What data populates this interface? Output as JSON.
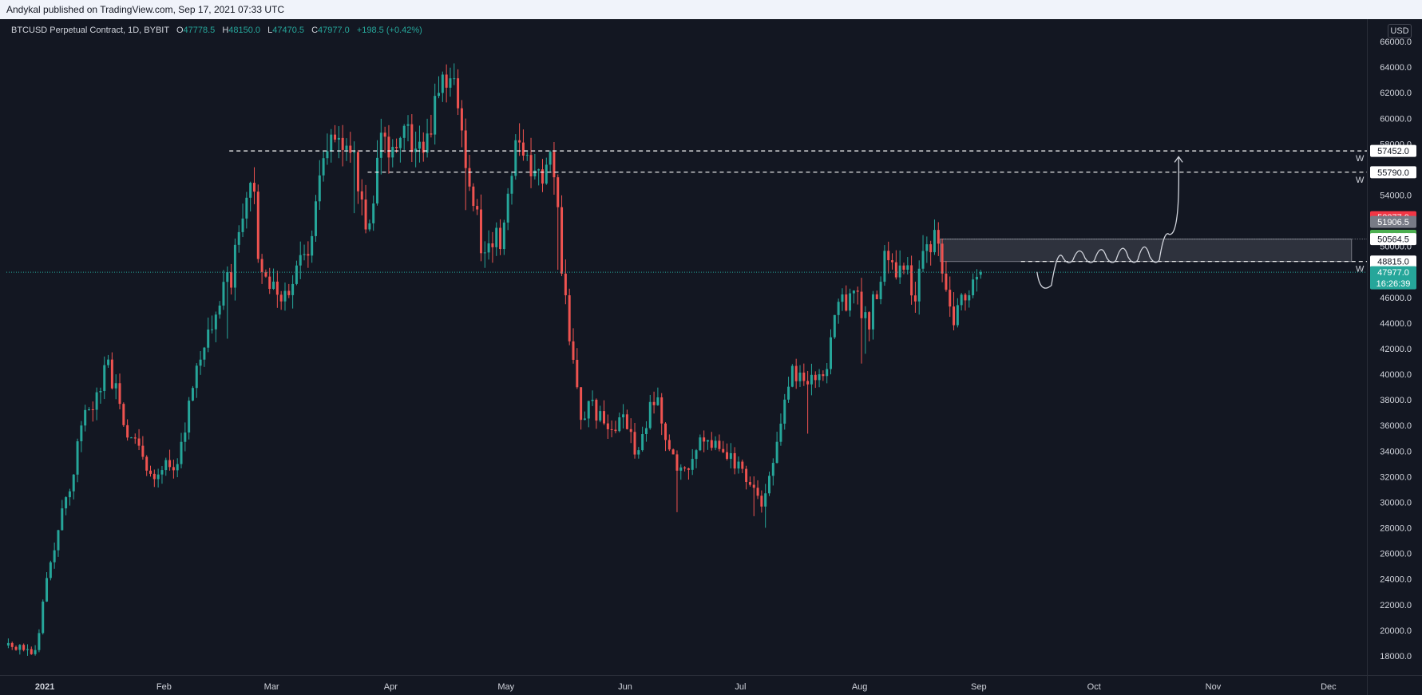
{
  "header": {
    "published_text": "Andykal published on TradingView.com, Sep 17, 2021 07:33 UTC"
  },
  "legend": {
    "symbol": "BTCUSD Perpetual Contract, 1D, BYBIT",
    "open_key": "O",
    "open": "47778.5",
    "high_key": "H",
    "high": "48150.0",
    "low_key": "L",
    "low": "47470.5",
    "close_key": "C",
    "close": "47977.0",
    "change": "+198.5 (+0.42%)"
  },
  "currency_button": "USD",
  "colors": {
    "background": "#131722",
    "up": "#26a69a",
    "down": "#ef5350",
    "text": "#d1d4dc",
    "axis_border": "#2a2e39"
  },
  "chart_data": {
    "type": "candlestick",
    "title": "BTCUSD Perpetual Contract, 1D, BYBIT",
    "ylim": [
      16500,
      67500
    ],
    "y_ticks": [
      18000,
      20000,
      22000,
      24000,
      26000,
      28000,
      30000,
      32000,
      34000,
      36000,
      38000,
      40000,
      42000,
      44000,
      46000,
      48000,
      50000,
      52000,
      54000,
      56000,
      58000,
      60000,
      62000,
      64000,
      66000
    ],
    "x_ticks": [
      {
        "label": "2021",
        "date": "2021-01-01"
      },
      {
        "label": "Feb",
        "date": "2021-02-01"
      },
      {
        "label": "Mar",
        "date": "2021-03-01"
      },
      {
        "label": "Apr",
        "date": "2021-04-01"
      },
      {
        "label": "May",
        "date": "2021-05-01"
      },
      {
        "label": "Jun",
        "date": "2021-06-01"
      },
      {
        "label": "Jul",
        "date": "2021-07-01"
      },
      {
        "label": "Aug",
        "date": "2021-08-01"
      },
      {
        "label": "Sep",
        "date": "2021-09-01"
      },
      {
        "label": "Oct",
        "date": "2021-10-01"
      },
      {
        "label": "Nov",
        "date": "2021-11-01"
      },
      {
        "label": "Dec",
        "date": "2021-12-01"
      }
    ],
    "x_range": [
      "2020-12-22",
      "2021-12-11"
    ],
    "grid": false,
    "candles": {
      "start_date": "2020-12-22",
      "interval": "1D",
      "approx_daily_closes": [
        [
          0,
          19000
        ],
        [
          7,
          18500
        ],
        [
          10,
          23500
        ],
        [
          14,
          29000
        ],
        [
          20,
          36500
        ],
        [
          26,
          40500
        ],
        [
          32,
          35000
        ],
        [
          38,
          31500
        ],
        [
          44,
          33500
        ],
        [
          52,
          44000
        ],
        [
          58,
          47500
        ],
        [
          63,
          56000
        ],
        [
          66,
          47000
        ],
        [
          72,
          46500
        ],
        [
          78,
          50000
        ],
        [
          82,
          56000
        ],
        [
          86,
          59500
        ],
        [
          90,
          56000
        ],
        [
          93,
          51500
        ],
        [
          97,
          57500
        ],
        [
          102,
          58500
        ],
        [
          108,
          58000
        ],
        [
          113,
          63500
        ],
        [
          116,
          62500
        ],
        [
          120,
          55000
        ],
        [
          124,
          48500
        ],
        [
          128,
          51000
        ],
        [
          132,
          57000
        ],
        [
          138,
          55500
        ],
        [
          141,
          57500
        ],
        [
          144,
          49000
        ],
        [
          146,
          43000
        ],
        [
          149,
          36500
        ],
        [
          152,
          38000
        ],
        [
          156,
          35000
        ],
        [
          160,
          36000
        ],
        [
          164,
          34000
        ],
        [
          168,
          38500
        ],
        [
          172,
          34000
        ],
        [
          176,
          32500
        ],
        [
          180,
          35500
        ],
        [
          184,
          34000
        ],
        [
          188,
          33500
        ],
        [
          192,
          31500
        ],
        [
          196,
          30000
        ],
        [
          200,
          35000
        ],
        [
          204,
          40000
        ],
        [
          208,
          39500
        ],
        [
          212,
          39500
        ],
        [
          216,
          45000
        ],
        [
          220,
          46500
        ],
        [
          224,
          44500
        ],
        [
          228,
          48500
        ],
        [
          232,
          48500
        ],
        [
          236,
          46500
        ],
        [
          240,
          50500
        ],
        [
          241,
          52000
        ],
        [
          243,
          47000
        ],
        [
          245,
          44500
        ],
        [
          249,
          45500
        ],
        [
          252,
          47000
        ],
        [
          253,
          47977
        ]
      ],
      "last": {
        "open": 47778.5,
        "high": 48150.0,
        "low": 47470.5,
        "close": 47977.0
      }
    },
    "annotations": {
      "horizontal_levels": [
        {
          "value": 57452.0,
          "label": "57452.0",
          "tag": "W",
          "from_date": "2021-02-18"
        },
        {
          "value": 55790.0,
          "label": "55790.0",
          "tag": "W",
          "from_date": "2021-03-26"
        },
        {
          "value": 48815.0,
          "label": "48815.0",
          "tag": "W",
          "from_date": "2021-09-12"
        }
      ],
      "zone": {
        "from_date": "2021-08-22",
        "to_date": "2021-12-07",
        "low": 48815.0,
        "high": 50564.5
      },
      "price_labels": [
        {
          "value": 52277.0,
          "label": "52277.0",
          "color": "#f23645",
          "text_color": "#ffffff"
        },
        {
          "value": 51906.5,
          "label": "51906.5",
          "color": "#787b86",
          "text_color": "#ffffff"
        },
        {
          "value": 50826.0,
          "label": "50826.0",
          "color": "#4caf50",
          "text_color": "#ffffff"
        },
        {
          "value": 50564.5,
          "label": "50564.5",
          "color": "#ffffff",
          "text_color": "#131722"
        },
        {
          "value": 48815.0,
          "label": "48815.0",
          "color": "#ffffff",
          "text_color": "#131722"
        }
      ],
      "current_price": {
        "value": 47977.0,
        "label": "47977.0",
        "countdown": "16:26:39",
        "color": "#26a69a"
      },
      "projection_path_dates": [
        "2021-09-17",
        "2021-10-18",
        "2021-10-23"
      ],
      "projection_target": 57000
    }
  }
}
